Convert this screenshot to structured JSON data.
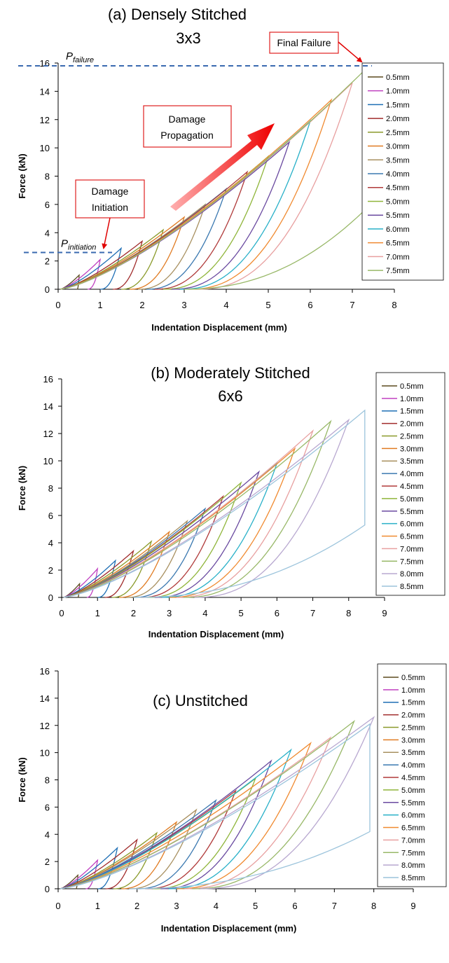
{
  "chart_data": [
    {
      "type": "line",
      "title": "(a) Densely Stitched",
      "subtitle": "3x3",
      "xlabel": "Indentation Displacement (mm)",
      "ylabel": "Force (kN)",
      "xlim": [
        0,
        8
      ],
      "ylim": [
        0,
        16
      ],
      "xticks": [
        "0",
        "1",
        "2",
        "3",
        "4",
        "5",
        "6",
        "7",
        "8"
      ],
      "yticks": [
        "0",
        "2",
        "4",
        "6",
        "8",
        "10",
        "12",
        "14",
        "16"
      ],
      "grid": false,
      "legend_position": "right",
      "legend": [
        "0.5mm",
        "1.0mm",
        "1.5mm",
        "2.0mm",
        "2.5mm",
        "3.0mm",
        "3.5mm",
        "4.0mm",
        "4.5mm",
        "5.0mm",
        "5.5mm",
        "6.0mm",
        "6.5mm",
        "7.0mm",
        "7.5mm"
      ],
      "series_colors": [
        "#5b4a1e",
        "#c040c0",
        "#1f6fb5",
        "#a02b2b",
        "#8a9a2a",
        "#e07b22",
        "#a89060",
        "#3a78b0",
        "#b03a3a",
        "#8fb53a",
        "#6a4aa0",
        "#28b0c8",
        "#f08a30",
        "#e8a0a0",
        "#98b868"
      ],
      "series": [
        {
          "name": "0.5mm",
          "peak_x": 0.5,
          "peak_y": 1.0,
          "unload_end_x": 0.45
        },
        {
          "name": "1.0mm",
          "peak_x": 1.0,
          "peak_y": 2.1,
          "unload_end_x": 0.7
        },
        {
          "name": "1.5mm",
          "peak_x": 1.5,
          "peak_y": 2.9,
          "unload_end_x": 1.0
        },
        {
          "name": "2.0mm",
          "peak_x": 2.0,
          "peak_y": 3.4,
          "unload_end_x": 1.3
        },
        {
          "name": "2.5mm",
          "peak_x": 2.5,
          "peak_y": 4.2,
          "unload_end_x": 1.5
        },
        {
          "name": "3.0mm",
          "peak_x": 3.0,
          "peak_y": 5.1,
          "unload_end_x": 1.7
        },
        {
          "name": "3.5mm",
          "peak_x": 3.5,
          "peak_y": 6.0,
          "unload_end_x": 1.9
        },
        {
          "name": "4.0mm",
          "peak_x": 4.0,
          "peak_y": 7.1,
          "unload_end_x": 2.1
        },
        {
          "name": "4.5mm",
          "peak_x": 4.5,
          "peak_y": 8.3,
          "unload_end_x": 2.3
        },
        {
          "name": "5.0mm",
          "peak_x": 5.0,
          "peak_y": 9.4,
          "unload_end_x": 2.5
        },
        {
          "name": "5.5mm",
          "peak_x": 5.5,
          "peak_y": 10.4,
          "unload_end_x": 2.7
        },
        {
          "name": "6.0mm",
          "peak_x": 6.0,
          "peak_y": 11.9,
          "unload_end_x": 2.9
        },
        {
          "name": "6.5mm",
          "peak_x": 6.5,
          "peak_y": 13.4,
          "unload_end_x": 3.1
        },
        {
          "name": "7.0mm",
          "peak_x": 7.0,
          "peak_y": 14.6,
          "unload_end_x": 3.3
        },
        {
          "name": "7.5mm",
          "peak_x": 7.4,
          "peak_y": 15.8,
          "unload_end_x": 3.6,
          "failure_drop_to": 5.9,
          "final_unload_end_x": 3.0
        }
      ],
      "annotations": {
        "p_failure_value": 15.8,
        "p_initiation_value": 2.6,
        "p_failure_symbol": "P",
        "p_failure_sub": "failure",
        "p_initiation_symbol": "P",
        "p_initiation_sub": "initiation",
        "final_failure": "Final Failure",
        "damage_propagation": [
          "Damage",
          "Propagation"
        ],
        "damage_initiation": [
          "Damage",
          "Initiation"
        ]
      }
    },
    {
      "type": "line",
      "title": "(b) Moderately Stitched",
      "subtitle": "6x6",
      "xlabel": "Indentation Displacement (mm)",
      "ylabel": "Force (kN)",
      "xlim": [
        0,
        9
      ],
      "ylim": [
        0,
        16
      ],
      "xticks": [
        "0",
        "1",
        "2",
        "3",
        "4",
        "5",
        "6",
        "7",
        "8",
        "9"
      ],
      "yticks": [
        "0",
        "2",
        "4",
        "6",
        "8",
        "10",
        "12",
        "14",
        "16"
      ],
      "grid": false,
      "legend_position": "right",
      "legend": [
        "0.5mm",
        "1.0mm",
        "1.5mm",
        "2.0mm",
        "2.5mm",
        "3.0mm",
        "3.5mm",
        "4.0mm",
        "4.5mm",
        "5.0mm",
        "5.5mm",
        "6.0mm",
        "6.5mm",
        "7.0mm",
        "7.5mm",
        "8.0mm",
        "8.5mm"
      ],
      "series_colors": [
        "#5b4a1e",
        "#c040c0",
        "#1f6fb5",
        "#a02b2b",
        "#8a9a2a",
        "#e07b22",
        "#a89060",
        "#3a78b0",
        "#b03a3a",
        "#8fb53a",
        "#6a4aa0",
        "#28b0c8",
        "#f08a30",
        "#e8a0a0",
        "#98b868",
        "#b8a8d0",
        "#9cc4dc"
      ],
      "series": [
        {
          "name": "0.5mm",
          "peak_x": 0.5,
          "peak_y": 1.0,
          "unload_end_x": 0.45
        },
        {
          "name": "1.0mm",
          "peak_x": 1.0,
          "peak_y": 2.1,
          "unload_end_x": 0.7
        },
        {
          "name": "1.5mm",
          "peak_x": 1.5,
          "peak_y": 2.7,
          "unload_end_x": 1.0
        },
        {
          "name": "2.0mm",
          "peak_x": 2.0,
          "peak_y": 3.4,
          "unload_end_x": 1.2
        },
        {
          "name": "2.5mm",
          "peak_x": 2.5,
          "peak_y": 4.1,
          "unload_end_x": 1.4
        },
        {
          "name": "3.0mm",
          "peak_x": 3.0,
          "peak_y": 4.8,
          "unload_end_x": 1.6
        },
        {
          "name": "3.5mm",
          "peak_x": 3.5,
          "peak_y": 5.6,
          "unload_end_x": 1.8
        },
        {
          "name": "4.0mm",
          "peak_x": 4.0,
          "peak_y": 6.5,
          "unload_end_x": 2.0
        },
        {
          "name": "4.5mm",
          "peak_x": 4.5,
          "peak_y": 7.4,
          "unload_end_x": 2.2
        },
        {
          "name": "5.0mm",
          "peak_x": 5.0,
          "peak_y": 8.4,
          "unload_end_x": 2.4
        },
        {
          "name": "5.5mm",
          "peak_x": 5.5,
          "peak_y": 9.2,
          "unload_end_x": 2.6
        },
        {
          "name": "6.0mm",
          "peak_x": 6.0,
          "peak_y": 9.8,
          "unload_end_x": 2.8
        },
        {
          "name": "6.5mm",
          "peak_x": 6.5,
          "peak_y": 10.9,
          "unload_end_x": 3.0
        },
        {
          "name": "7.0mm",
          "peak_x": 7.0,
          "peak_y": 12.2,
          "unload_end_x": 3.2
        },
        {
          "name": "7.5mm",
          "peak_x": 7.5,
          "peak_y": 12.9,
          "unload_end_x": 3.4
        },
        {
          "name": "8.0mm",
          "peak_x": 8.0,
          "peak_y": 13.0,
          "unload_end_x": 3.7
        },
        {
          "name": "8.5mm",
          "peak_x": 8.45,
          "peak_y": 13.7,
          "unload_end_x": 4.0,
          "failure_drop_to": 5.3,
          "final_unload_end_x": 2.0
        }
      ]
    },
    {
      "type": "line",
      "title": "(c) Unstitched",
      "subtitle": "",
      "xlabel": "Indentation Displacement (mm)",
      "ylabel": "Force (kN)",
      "xlim": [
        0,
        9
      ],
      "ylim": [
        0,
        16
      ],
      "xticks": [
        "0",
        "1",
        "2",
        "3",
        "4",
        "5",
        "6",
        "7",
        "8",
        "9"
      ],
      "yticks": [
        "0",
        "2",
        "4",
        "6",
        "8",
        "10",
        "12",
        "14",
        "16"
      ],
      "grid": false,
      "legend_position": "right",
      "legend": [
        "0.5mm",
        "1.0mm",
        "1.5mm",
        "2.0mm",
        "2.5mm",
        "3.0mm",
        "3.5mm",
        "4.0mm",
        "4.5mm",
        "5.0mm",
        "5.5mm",
        "6.0mm",
        "6.5mm",
        "7.0mm",
        "7.5mm",
        "8.0mm",
        "8.5mm"
      ],
      "series_colors": [
        "#5b4a1e",
        "#c040c0",
        "#1f6fb5",
        "#a02b2b",
        "#8a9a2a",
        "#e07b22",
        "#a89060",
        "#3a78b0",
        "#b03a3a",
        "#8fb53a",
        "#6a4aa0",
        "#28b0c8",
        "#f08a30",
        "#e8a0a0",
        "#98b868",
        "#b8a8d0",
        "#9cc4dc"
      ],
      "series": [
        {
          "name": "0.5mm",
          "peak_x": 0.5,
          "peak_y": 1.0,
          "unload_end_x": 0.45
        },
        {
          "name": "1.0mm",
          "peak_x": 1.0,
          "peak_y": 2.1,
          "unload_end_x": 0.7
        },
        {
          "name": "1.5mm",
          "peak_x": 1.5,
          "peak_y": 3.0,
          "unload_end_x": 1.0
        },
        {
          "name": "2.0mm",
          "peak_x": 2.0,
          "peak_y": 3.6,
          "unload_end_x": 1.2
        },
        {
          "name": "2.5mm",
          "peak_x": 2.5,
          "peak_y": 4.1,
          "unload_end_x": 1.4
        },
        {
          "name": "3.0mm",
          "peak_x": 3.0,
          "peak_y": 4.9,
          "unload_end_x": 1.6
        },
        {
          "name": "3.5mm",
          "peak_x": 3.5,
          "peak_y": 5.8,
          "unload_end_x": 1.8
        },
        {
          "name": "4.0mm",
          "peak_x": 4.0,
          "peak_y": 6.5,
          "unload_end_x": 2.0
        },
        {
          "name": "4.5mm",
          "peak_x": 4.5,
          "peak_y": 7.2,
          "unload_end_x": 2.2
        },
        {
          "name": "5.0mm",
          "peak_x": 5.0,
          "peak_y": 8.1,
          "unload_end_x": 2.4
        },
        {
          "name": "5.5mm",
          "peak_x": 5.4,
          "peak_y": 9.4,
          "unload_end_x": 2.6
        },
        {
          "name": "6.0mm",
          "peak_x": 5.9,
          "peak_y": 10.2,
          "unload_end_x": 2.8
        },
        {
          "name": "6.5mm",
          "peak_x": 6.4,
          "peak_y": 10.7,
          "unload_end_x": 3.0
        },
        {
          "name": "7.0mm",
          "peak_x": 6.9,
          "peak_y": 11.1,
          "unload_end_x": 3.2
        },
        {
          "name": "7.5mm",
          "peak_x": 7.5,
          "peak_y": 12.3,
          "unload_end_x": 3.4
        },
        {
          "name": "8.0mm",
          "peak_x": 8.0,
          "peak_y": 12.6,
          "unload_end_x": 3.6
        },
        {
          "name": "8.5mm",
          "peak_x": 7.9,
          "peak_y": 12.1,
          "unload_end_x": 3.8,
          "failure_drop_to": 4.2,
          "final_unload_end_x": 1.8
        }
      ]
    }
  ]
}
